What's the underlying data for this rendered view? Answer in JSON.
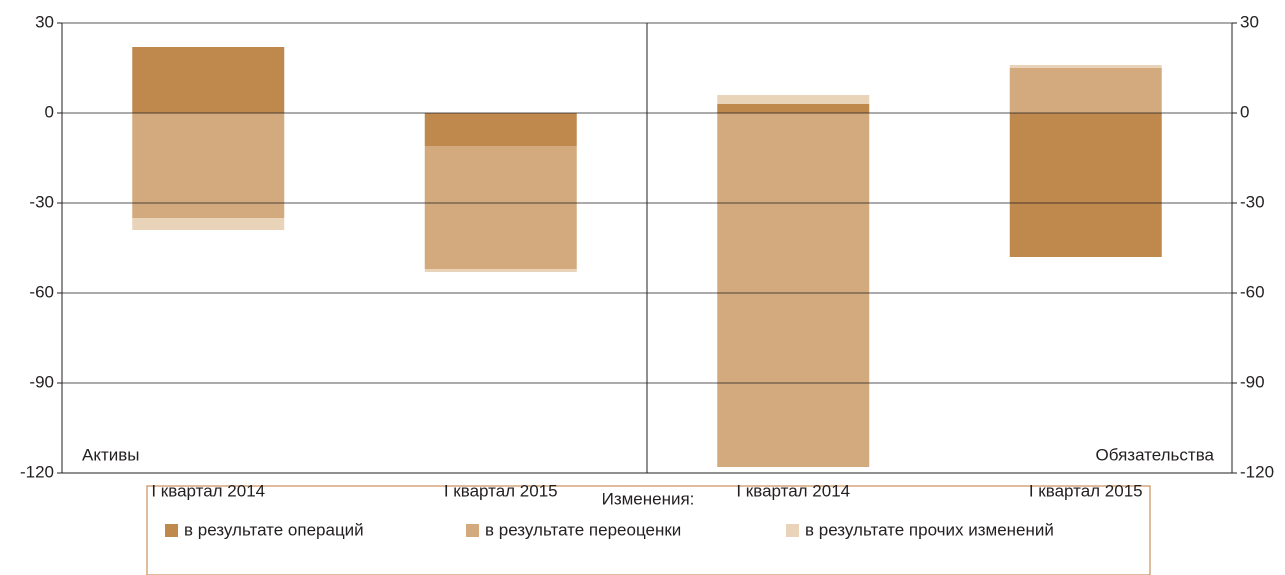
{
  "chart_data": {
    "type": "bar",
    "stacked": true,
    "groups": [
      "Активы",
      "Обязательства"
    ],
    "categories": [
      "I квартал 2014",
      "I квартал 2015",
      "I квартал 2014",
      "I квартал 2015"
    ],
    "legend_title": "Изменения:",
    "series": [
      {
        "name": "в результате операций",
        "color": "#bf894e",
        "values": [
          22,
          -11,
          3,
          -48
        ]
      },
      {
        "name": "в результате переоценки",
        "color": "#d2aa7e",
        "values": [
          -35,
          -41,
          -118,
          15
        ]
      },
      {
        "name": "в результате прочих изменений",
        "color": "#e9d4b9",
        "values": [
          -4,
          -1,
          3,
          1
        ]
      }
    ],
    "ylim": [
      -120,
      30
    ],
    "yticks": [
      -120,
      -90,
      -60,
      -30,
      0,
      30
    ],
    "grid": true
  }
}
